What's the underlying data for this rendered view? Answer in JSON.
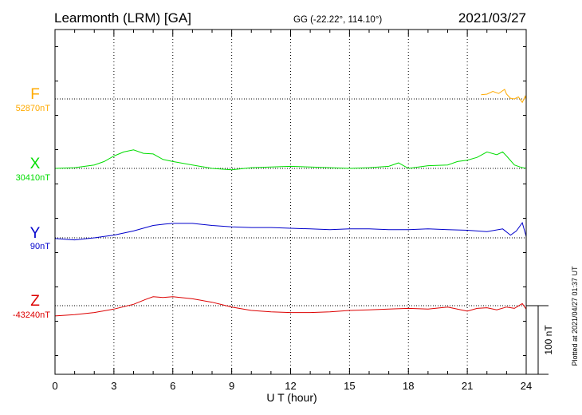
{
  "header": {
    "station": "Learmonth (LRM)  [GA]",
    "coords": "GG (-22.22°, 114.10°)",
    "date": "2021/03/27"
  },
  "footer_note": "Plotted at 2021/04/27 01:37 UT",
  "chart_data": {
    "type": "line",
    "xlabel": "U T (hour)",
    "xlim": [
      0,
      24
    ],
    "xticks": [
      "0",
      "3",
      "6",
      "9",
      "12",
      "15",
      "18",
      "21",
      "24"
    ],
    "scale_bar": {
      "label": "100 nT",
      "value_nT": 100
    },
    "series": [
      {
        "name": "F",
        "baseline_label": "52870nT",
        "color": "#ffaa00",
        "points": [
          [
            21.7,
            52876
          ],
          [
            22.0,
            52877
          ],
          [
            22.3,
            52881
          ],
          [
            22.6,
            52878
          ],
          [
            22.9,
            52884
          ],
          [
            23.0,
            52877
          ],
          [
            23.2,
            52871
          ],
          [
            23.4,
            52870
          ],
          [
            23.6,
            52873
          ],
          [
            23.8,
            52865
          ],
          [
            23.95,
            52874
          ],
          [
            24.0,
            52869
          ]
        ]
      },
      {
        "name": "X",
        "baseline_label": "30410nT",
        "color": "#00dd00",
        "points": [
          [
            0,
            30410
          ],
          [
            1,
            30411
          ],
          [
            2,
            30415
          ],
          [
            2.5,
            30420
          ],
          [
            3,
            30428
          ],
          [
            3.5,
            30434
          ],
          [
            4,
            30437
          ],
          [
            4.5,
            30432
          ],
          [
            5,
            30431
          ],
          [
            5.5,
            30423
          ],
          [
            6,
            30420
          ],
          [
            7,
            30415
          ],
          [
            8,
            30410
          ],
          [
            9,
            30408
          ],
          [
            10,
            30411
          ],
          [
            11,
            30412
          ],
          [
            12,
            30413
          ],
          [
            13,
            30412
          ],
          [
            14,
            30411
          ],
          [
            15,
            30410
          ],
          [
            16,
            30411
          ],
          [
            17,
            30413
          ],
          [
            17.5,
            30418
          ],
          [
            18,
            30410
          ],
          [
            19,
            30414
          ],
          [
            20,
            30415
          ],
          [
            20.5,
            30420
          ],
          [
            21,
            30422
          ],
          [
            21.5,
            30426
          ],
          [
            22,
            30434
          ],
          [
            22.5,
            30430
          ],
          [
            22.8,
            30434
          ],
          [
            23,
            30428
          ],
          [
            23.4,
            30415
          ],
          [
            23.7,
            30412
          ],
          [
            24,
            30410
          ]
        ]
      },
      {
        "name": "Y",
        "baseline_label": "90nT",
        "color": "#0000cc",
        "points": [
          [
            0,
            89
          ],
          [
            0.5,
            88
          ],
          [
            1,
            87
          ],
          [
            2,
            90
          ],
          [
            3,
            94
          ],
          [
            4,
            100
          ],
          [
            5,
            108
          ],
          [
            5.6,
            110
          ],
          [
            6,
            111
          ],
          [
            7,
            111
          ],
          [
            8,
            108
          ],
          [
            9,
            106
          ],
          [
            10,
            105
          ],
          [
            11,
            105
          ],
          [
            12,
            104
          ],
          [
            13,
            103
          ],
          [
            14,
            102
          ],
          [
            15,
            103
          ],
          [
            16,
            103
          ],
          [
            17,
            102
          ],
          [
            18,
            102
          ],
          [
            19,
            103
          ],
          [
            20,
            102
          ],
          [
            21,
            101
          ],
          [
            22,
            99
          ],
          [
            22.8,
            103
          ],
          [
            23.2,
            94
          ],
          [
            23.5,
            100
          ],
          [
            23.8,
            112
          ],
          [
            24,
            92
          ]
        ]
      },
      {
        "name": "Z",
        "baseline_label": "-43240nT",
        "color": "#dd0000",
        "points": [
          [
            0,
            -43255
          ],
          [
            1,
            -43253
          ],
          [
            2,
            -43250
          ],
          [
            3,
            -43245
          ],
          [
            4,
            -43238
          ],
          [
            4.6,
            -43231
          ],
          [
            5,
            -43227
          ],
          [
            5.5,
            -43228
          ],
          [
            6,
            -43227
          ],
          [
            7,
            -43230
          ],
          [
            8,
            -43235
          ],
          [
            9,
            -43242
          ],
          [
            10,
            -43247
          ],
          [
            11,
            -43249
          ],
          [
            12,
            -43250
          ],
          [
            13,
            -43250
          ],
          [
            14,
            -43249
          ],
          [
            15,
            -43247
          ],
          [
            16,
            -43246
          ],
          [
            17,
            -43245
          ],
          [
            18,
            -43244
          ],
          [
            19,
            -43245
          ],
          [
            20,
            -43242
          ],
          [
            21,
            -43248
          ],
          [
            21.5,
            -43244
          ],
          [
            22,
            -43243
          ],
          [
            22.5,
            -43246
          ],
          [
            23,
            -43242
          ],
          [
            23.4,
            -43244
          ],
          [
            23.8,
            -43237
          ],
          [
            24,
            -43245
          ]
        ]
      }
    ]
  }
}
